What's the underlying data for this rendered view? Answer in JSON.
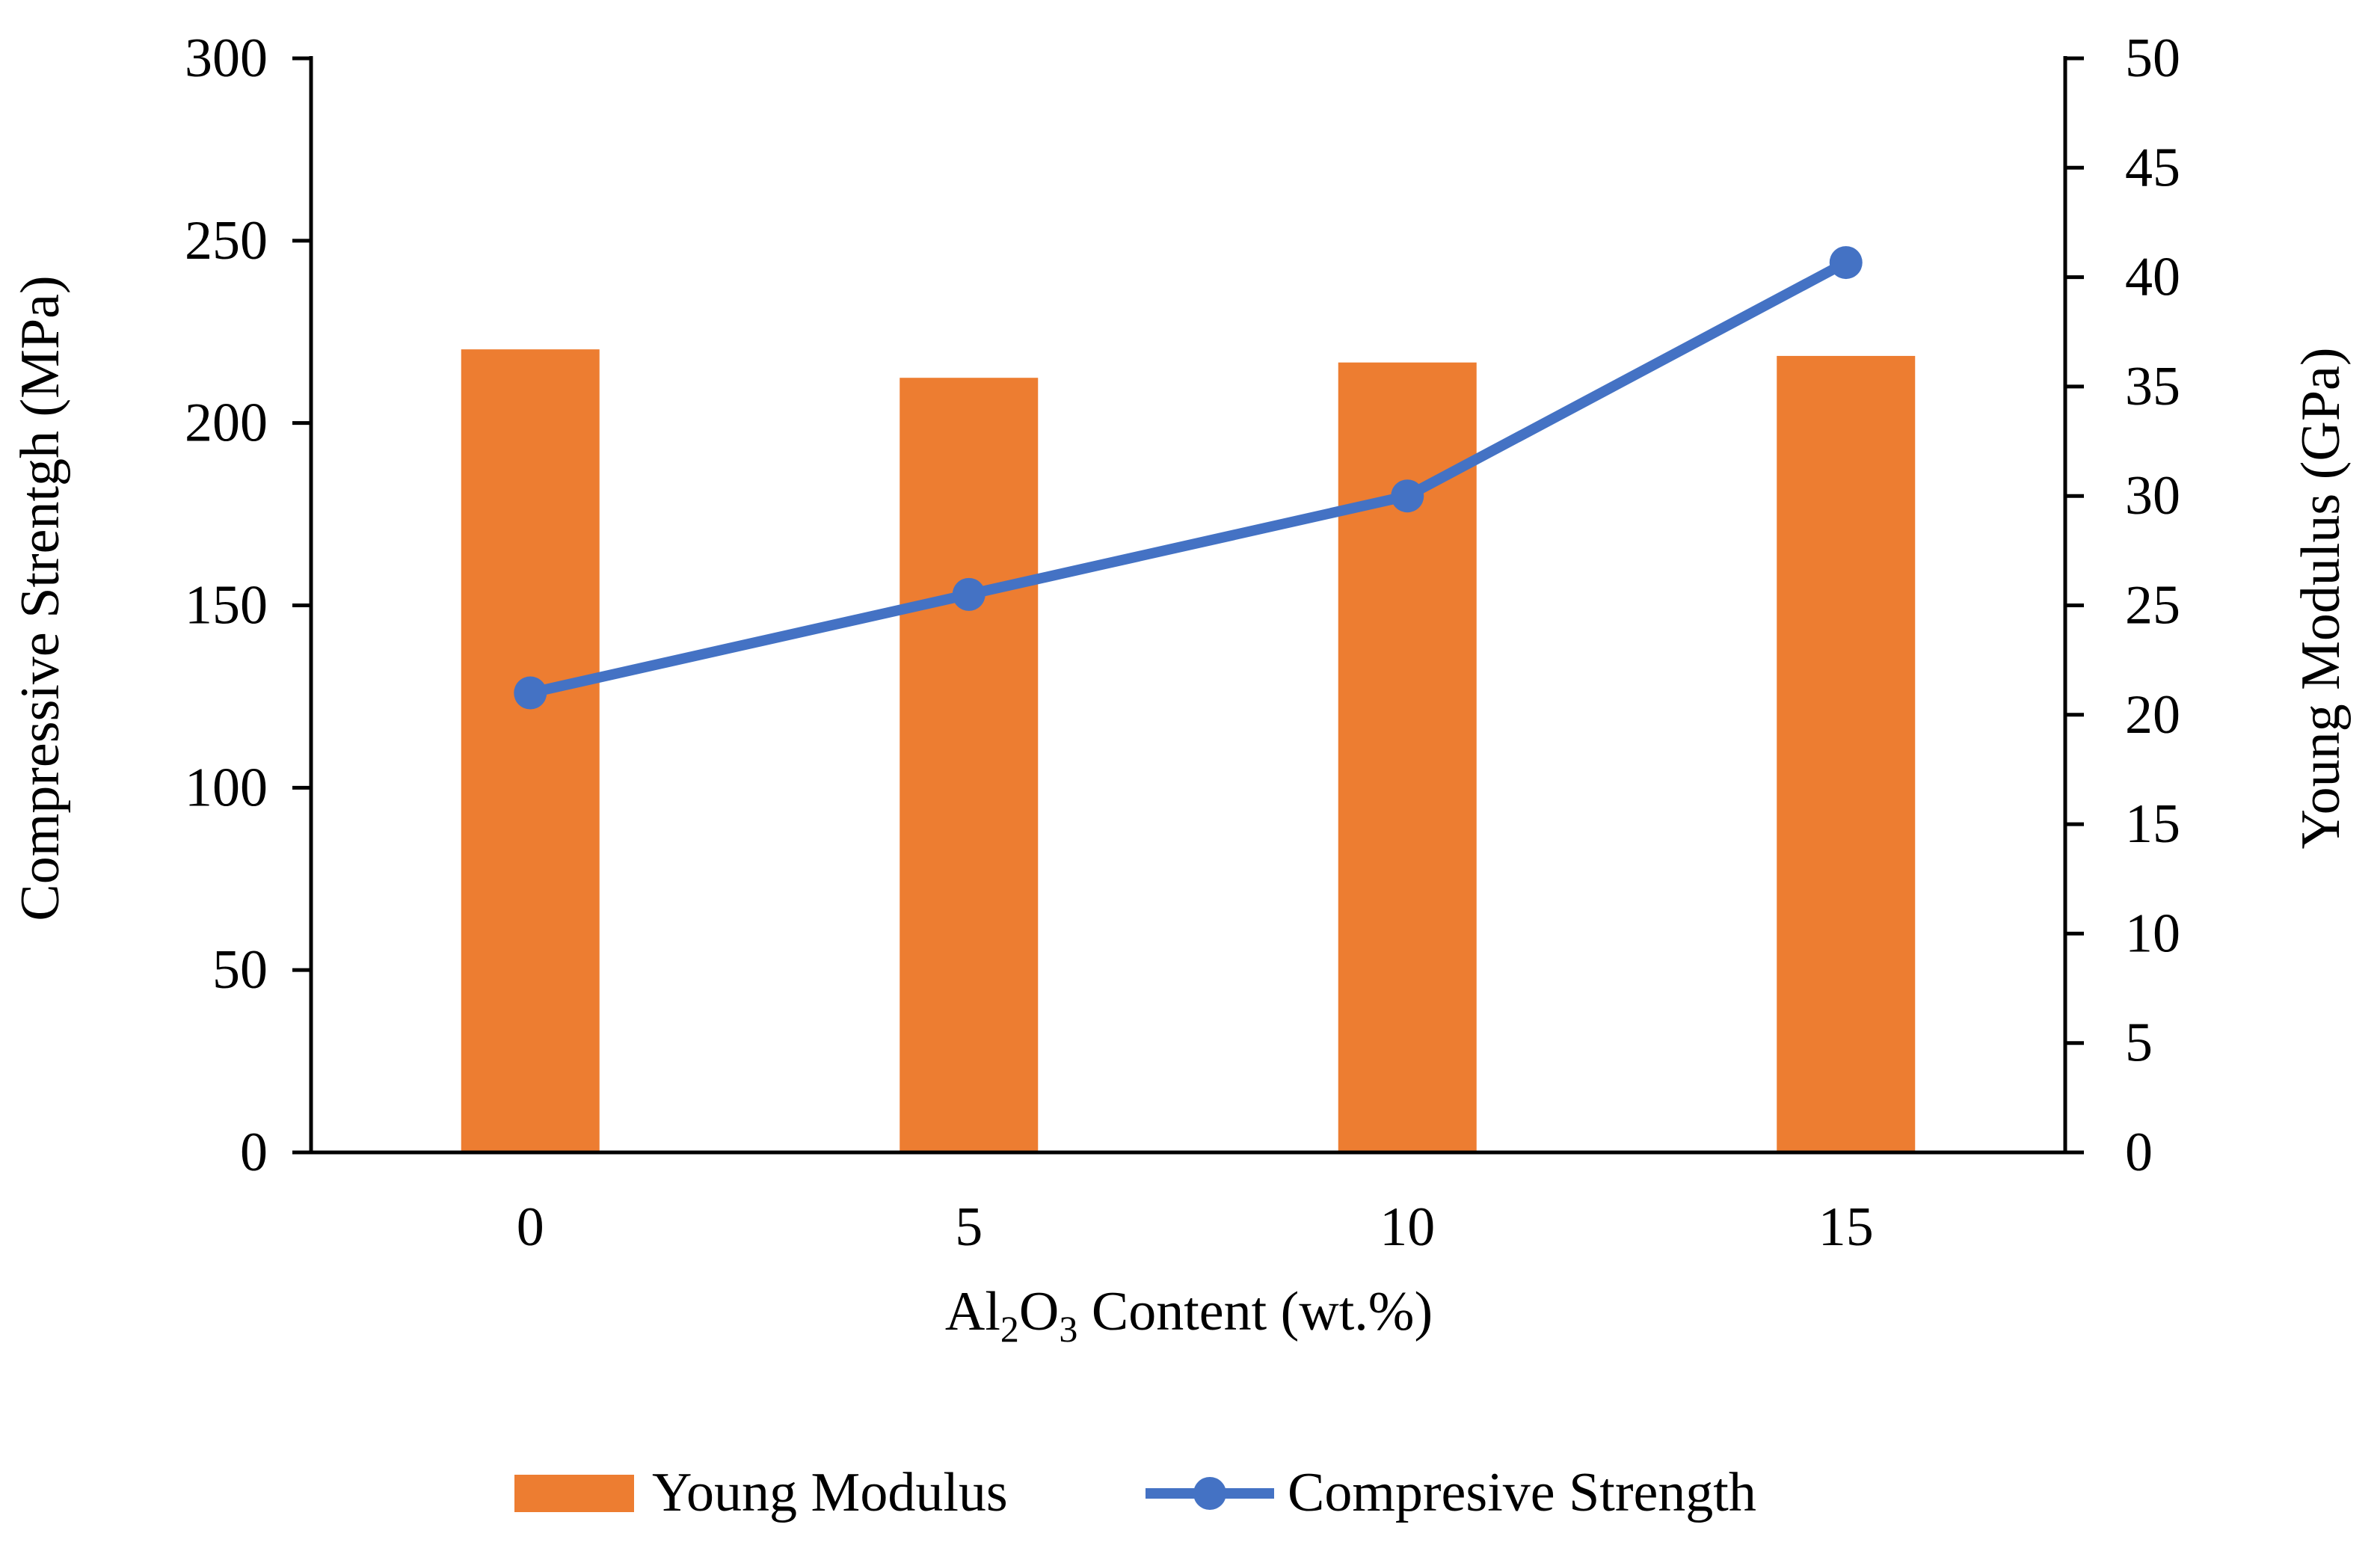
{
  "chart_data": {
    "type": "bar+line",
    "categories": [
      "0",
      "5",
      "10",
      "15"
    ],
    "xlabel": {
      "prefix": "Al",
      "sub1": "2",
      "mid": "O",
      "sub2": "3",
      "suffix": " Content (wt.%)"
    },
    "ylabel_left": "Compressive Strentgh (MPa)",
    "ylabel_right": "Young Modulus (GPa)",
    "ylim_left": [
      0,
      300
    ],
    "ylim_right": [
      0,
      50
    ],
    "yticks_left": [
      "0",
      "50",
      "100",
      "150",
      "200",
      "250",
      "300"
    ],
    "yticks_right": [
      "0",
      "5",
      "10",
      "15",
      "20",
      "25",
      "30",
      "35",
      "40",
      "45",
      "50"
    ],
    "series": [
      {
        "name": "Young Modulus",
        "kind": "bar",
        "axis": "right",
        "color": "#ED7D31",
        "values": [
          36.7,
          35.4,
          36.1,
          36.4
        ]
      },
      {
        "name": "Compresive Strength",
        "kind": "line",
        "axis": "left",
        "color": "#4472C4",
        "values": [
          126,
          153,
          180,
          244
        ]
      }
    ],
    "legend_position": "bottom-center"
  }
}
